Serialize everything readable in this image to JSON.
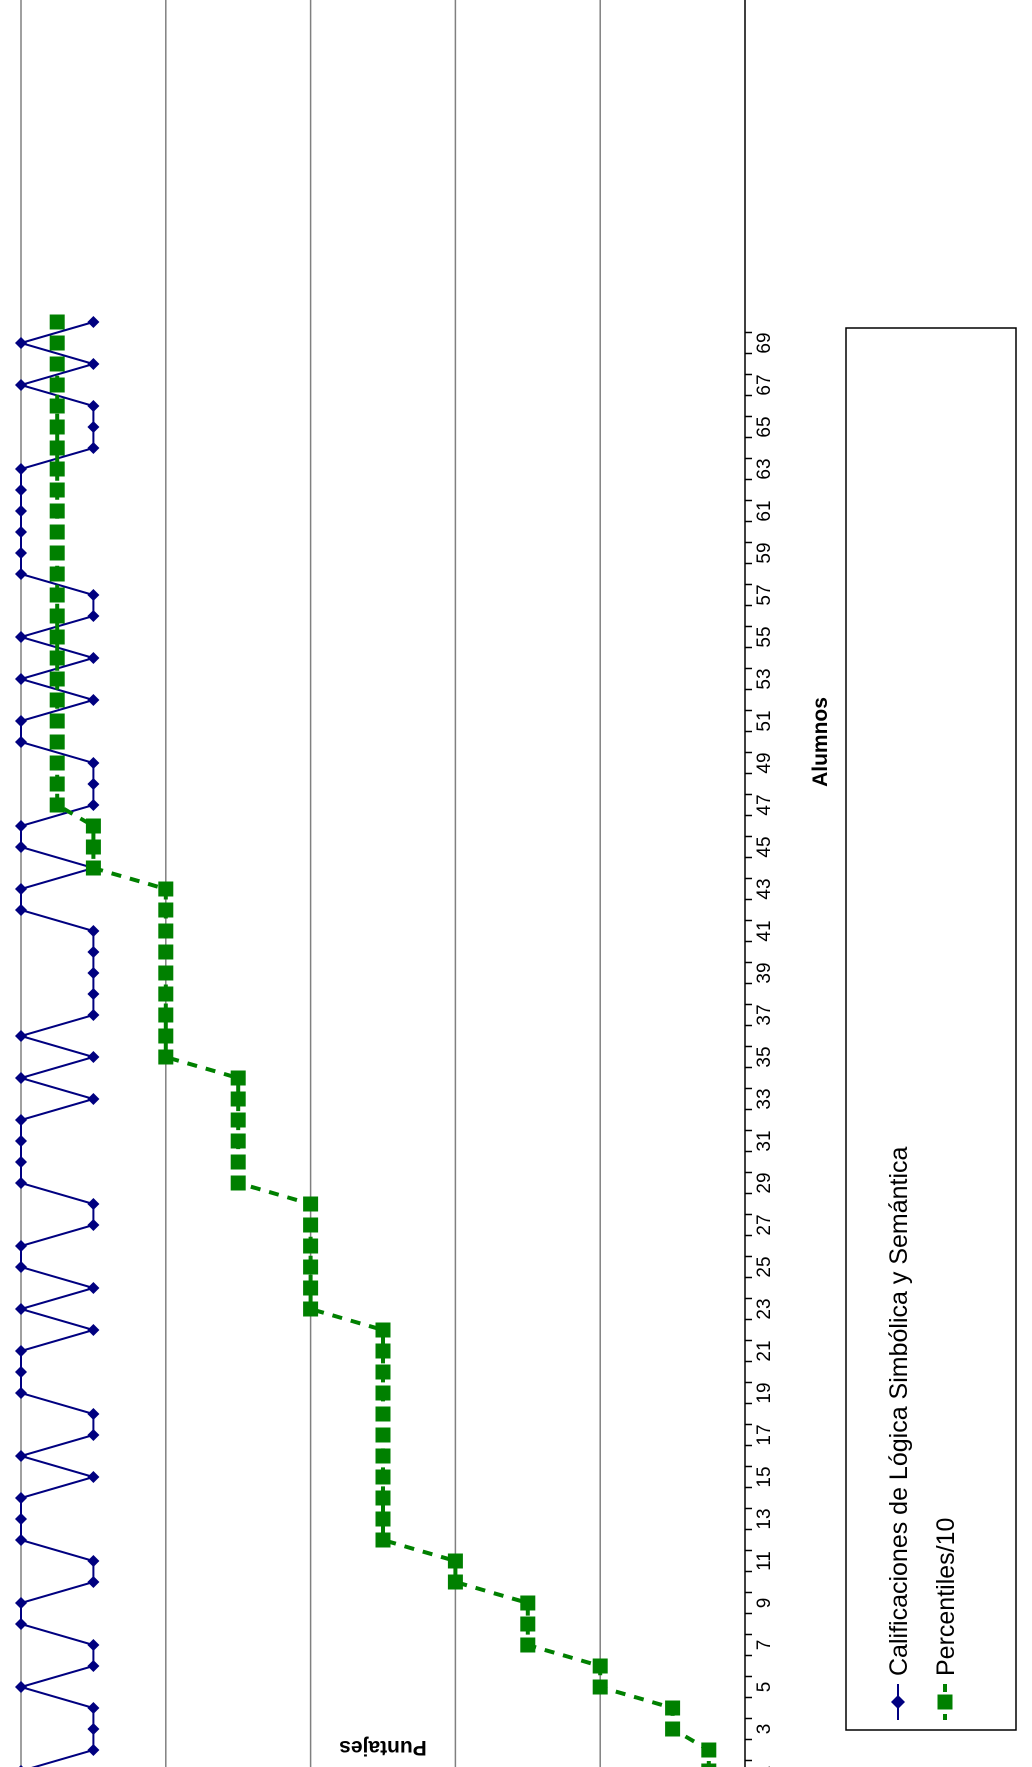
{
  "chart_data": {
    "type": "line",
    "title": "",
    "xlabel": "Alumnos",
    "ylabel": "Puntajes",
    "ylim": [
      0,
      10
    ],
    "y_ticks": [
      0,
      2,
      4,
      6,
      8,
      10
    ],
    "x_ticks": [
      1,
      3,
      5,
      7,
      9,
      11,
      13,
      15,
      17,
      19,
      21,
      23,
      25,
      27,
      29,
      31,
      33,
      35,
      37,
      39,
      41,
      43,
      45,
      47,
      49,
      51,
      53,
      55,
      57,
      59,
      61,
      63,
      65,
      67,
      69
    ],
    "grid": "horizontal",
    "orientation": "rotated-90",
    "legend_position": "bottom",
    "x": [
      1,
      2,
      3,
      4,
      5,
      6,
      7,
      8,
      9,
      10,
      11,
      12,
      13,
      14,
      15,
      16,
      17,
      18,
      19,
      20,
      21,
      22,
      23,
      24,
      25,
      26,
      27,
      28,
      29,
      30,
      31,
      32,
      33,
      34,
      35,
      36,
      37,
      38,
      39,
      40,
      41,
      42,
      43,
      44,
      45,
      46,
      47,
      48,
      49,
      50,
      51,
      52,
      53,
      54,
      55,
      56,
      57,
      58,
      59,
      60,
      61,
      62,
      63,
      64,
      65,
      66,
      67,
      68,
      69,
      70
    ],
    "series": [
      {
        "name": "Calificaciones de Lógica Simbólica y Semántica",
        "color": "#000080",
        "marker": "diamond",
        "line": "solid",
        "values": [
          10,
          9,
          9,
          9,
          10,
          9,
          9,
          10,
          10,
          9,
          9,
          10,
          10,
          10,
          9,
          10,
          9,
          9,
          10,
          10,
          10,
          9,
          10,
          9,
          10,
          10,
          9,
          9,
          10,
          10,
          10,
          10,
          9,
          10,
          9,
          10,
          9,
          9,
          9,
          9,
          9,
          10,
          10,
          9,
          10,
          10,
          9,
          9,
          9,
          10,
          10,
          9,
          10,
          9,
          10,
          9,
          9,
          10,
          10,
          10,
          10,
          10,
          10,
          9,
          9,
          9,
          10,
          9,
          10,
          9
        ]
      },
      {
        "name": "Percentiles/10",
        "color": "#008000",
        "marker": "square",
        "line": "dashed",
        "values": [
          0.5,
          0.5,
          1,
          1,
          2,
          2,
          3,
          3,
          3,
          4,
          4,
          5,
          5,
          5,
          5,
          5,
          5,
          5,
          5,
          5,
          5,
          5,
          6,
          6,
          6,
          6,
          6,
          6,
          7,
          7,
          7,
          7,
          7,
          7,
          8,
          8,
          8,
          8,
          8,
          8,
          8,
          8,
          8,
          9,
          9,
          9,
          9.5,
          9.5,
          9.5,
          9.5,
          9.5,
          9.5,
          9.5,
          9.5,
          9.5,
          9.5,
          9.5,
          9.5,
          9.5,
          9.5,
          9.5,
          9.5,
          9.5,
          9.5,
          9.5,
          9.5,
          9.5,
          9.5,
          9.5,
          9.5
        ]
      }
    ]
  }
}
